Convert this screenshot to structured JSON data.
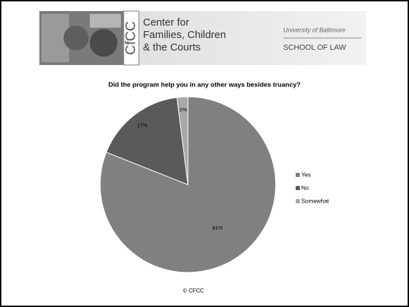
{
  "header": {
    "logo": "CfCC",
    "name_lines": [
      "Center for",
      "Families, Children",
      "& the Courts"
    ],
    "university": "University of Baltimore",
    "school": "SCHOOL OF LAW"
  },
  "chart_data": {
    "type": "pie",
    "title": "Did the program help you in any other ways besides truancy?",
    "categories": [
      "Yes",
      "No",
      "Somewhat"
    ],
    "values": [
      81,
      17,
      2
    ],
    "value_labels": [
      "81%",
      "17%",
      "2%"
    ],
    "colors": [
      "#808080",
      "#5a5a5a",
      "#a8a8a8"
    ],
    "legend": "right"
  },
  "footer": "© CFCC"
}
